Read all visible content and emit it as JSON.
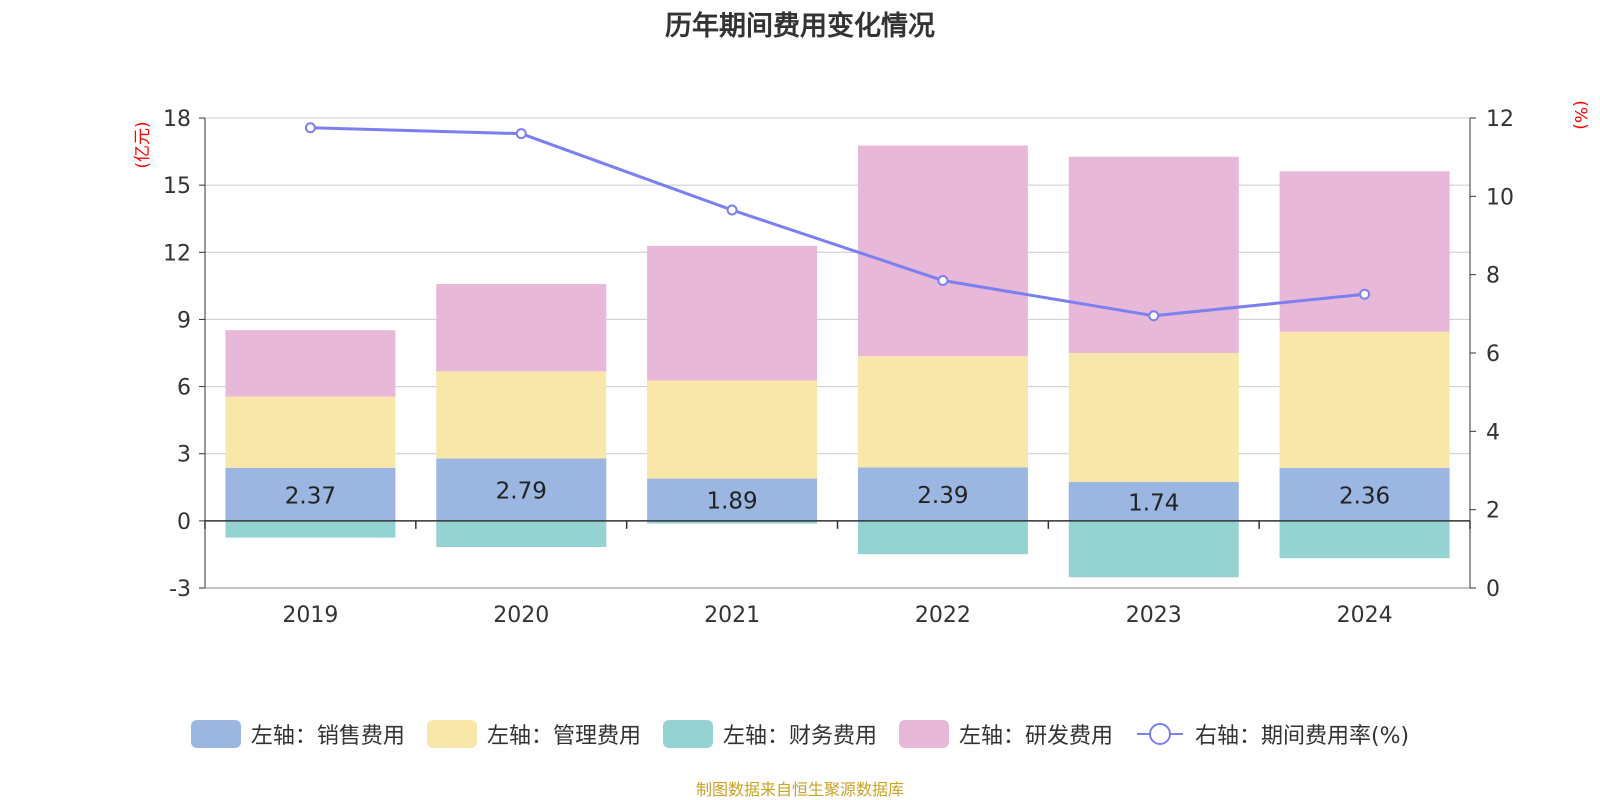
{
  "title": "历年期间费用变化情况",
  "source": "制图数据来自恒生聚源数据库",
  "colors": {
    "sales": "#9bb6e0",
    "admin": "#f8e7a8",
    "finance": "#95d3d3",
    "rnd": "#e8b8d9",
    "rate": "#7b7ff0",
    "axis_label": "#ff0000",
    "grid": "#cccccc",
    "text": "#333333"
  },
  "legend": [
    {
      "key": "sales",
      "label": "左轴：销售费用"
    },
    {
      "key": "admin",
      "label": "左轴：管理费用"
    },
    {
      "key": "finance",
      "label": "左轴：财务费用"
    },
    {
      "key": "rnd",
      "label": "左轴：研发费用"
    },
    {
      "key": "rate",
      "label": "右轴：期间费用率(%)"
    }
  ],
  "chart_data": {
    "type": "bar",
    "stacked": true,
    "categories": [
      "2019",
      "2020",
      "2021",
      "2022",
      "2023",
      "2024"
    ],
    "series": [
      {
        "key": "sales",
        "name": "左轴：销售费用",
        "axis": "left",
        "values": [
          2.37,
          2.79,
          1.89,
          2.39,
          1.74,
          2.36
        ],
        "show_labels": true
      },
      {
        "key": "admin",
        "name": "左轴：管理费用",
        "axis": "left",
        "values": [
          3.18,
          3.89,
          4.38,
          4.97,
          5.76,
          6.09
        ]
      },
      {
        "key": "finance",
        "name": "左轴：财务费用",
        "axis": "left",
        "values": [
          -0.75,
          -1.17,
          -0.12,
          -1.49,
          -2.52,
          -1.67
        ]
      },
      {
        "key": "rnd",
        "name": "左轴：研发费用",
        "axis": "left",
        "values": [
          2.97,
          3.9,
          6.02,
          9.41,
          8.77,
          7.17
        ]
      },
      {
        "key": "rate",
        "name": "右轴：期间费用率(%)",
        "axis": "right",
        "type": "line",
        "values": [
          11.75,
          11.6,
          9.65,
          7.85,
          6.95,
          7.5
        ]
      }
    ],
    "left_axis": {
      "unit": "(亿元)",
      "min": -3,
      "max": 18,
      "ticks": [
        -3,
        0,
        3,
        6,
        9,
        12,
        15,
        18
      ]
    },
    "right_axis": {
      "unit": "(%)",
      "min": 0,
      "max": 12,
      "ticks": [
        0,
        2,
        4,
        6,
        8,
        10,
        12
      ]
    },
    "grid": true,
    "legend_position": "bottom"
  }
}
